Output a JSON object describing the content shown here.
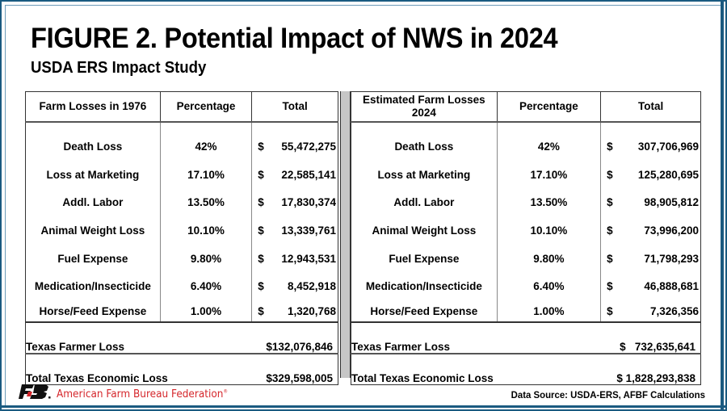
{
  "header": {
    "title": "FIGURE 2. Potential Impact of NWS in 2024",
    "subtitle": "USDA ERS Impact Study"
  },
  "table_1976": {
    "columns": [
      "Farm Losses in 1976",
      "Percentage",
      "Total"
    ],
    "rows": [
      {
        "item": "Death Loss",
        "percentage": "42%",
        "currency": "$",
        "total": "55,472,275"
      },
      {
        "item": "Loss at Marketing",
        "percentage": "17.10%",
        "currency": "$",
        "total": "22,585,141"
      },
      {
        "item": "Addl. Labor",
        "percentage": "13.50%",
        "currency": "$",
        "total": "17,830,374"
      },
      {
        "item": "Animal Weight Loss",
        "percentage": "10.10%",
        "currency": "$",
        "total": "13,339,761"
      },
      {
        "item": "Fuel Expense",
        "percentage": "9.80%",
        "currency": "$",
        "total": "12,943,531"
      },
      {
        "item": "Medication/Insecticide",
        "percentage": "6.40%",
        "currency": "$",
        "total": "8,452,918"
      },
      {
        "item": "Horse/Feed Expense",
        "percentage": "1.00%",
        "currency": "$",
        "total": "1,320,768"
      }
    ],
    "summary": [
      {
        "label": "Texas Farmer Loss",
        "value": "$132,076,846"
      },
      {
        "label": "Total Texas Economic Loss",
        "value": "$329,598,005"
      }
    ]
  },
  "table_2024": {
    "columns": [
      "Estimated Farm Losses 2024",
      "Percentage",
      "Total"
    ],
    "rows": [
      {
        "item": "Death Loss",
        "percentage": "42%",
        "currency": "$",
        "total": "307,706,969"
      },
      {
        "item": "Loss at Marketing",
        "percentage": "17.10%",
        "currency": "$",
        "total": "125,280,695"
      },
      {
        "item": "Addl. Labor",
        "percentage": "13.50%",
        "currency": "$",
        "total": "98,905,812"
      },
      {
        "item": "Animal Weight Loss",
        "percentage": "10.10%",
        "currency": "$",
        "total": "73,996,200"
      },
      {
        "item": "Fuel Expense",
        "percentage": "9.80%",
        "currency": "$",
        "total": "71,798,293"
      },
      {
        "item": "Medication/Insecticide",
        "percentage": "6.40%",
        "currency": "$",
        "total": "46,888,681"
      },
      {
        "item": "Horse/Feed Expense",
        "percentage": "1.00%",
        "currency": "$",
        "total": "7,326,356"
      }
    ],
    "summary": [
      {
        "label": "Texas Farmer Loss",
        "value": "$   732,635,641"
      },
      {
        "label": "Total Texas Economic Loss",
        "value": "$ 1,828,293,838"
      }
    ]
  },
  "footer": {
    "organization": "American Farm Bureau Federation",
    "registered_mark": "®",
    "data_source": "Data Source:  USDA-ERS, AFBF Calculations"
  },
  "colors": {
    "frame": "#1a5a80",
    "brand_red": "#d5262b",
    "divider": "#c6c6c6"
  }
}
